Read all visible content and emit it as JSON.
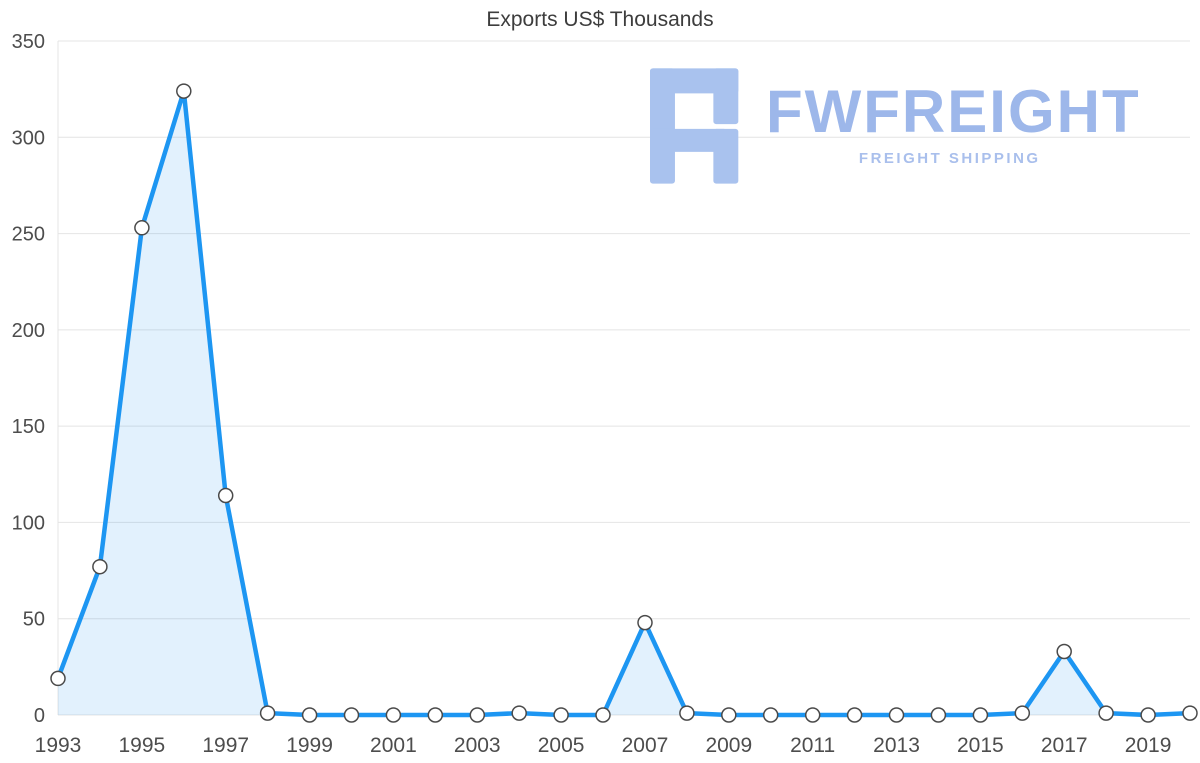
{
  "title": "Exports US$ Thousands",
  "watermark": {
    "brand": "FWFREIGHT",
    "tagline": "FREIGHT SHIPPING",
    "logo_icon": "stylized-f-monogram-icon",
    "color": "#a9c2ee"
  },
  "chart_data": {
    "type": "area",
    "title": "Exports US$ Thousands",
    "xlabel": "",
    "ylabel": "",
    "x": [
      1993,
      1994,
      1995,
      1996,
      1997,
      1998,
      1999,
      2000,
      2001,
      2002,
      2003,
      2004,
      2005,
      2006,
      2007,
      2008,
      2009,
      2010,
      2011,
      2012,
      2013,
      2014,
      2015,
      2016,
      2017,
      2018,
      2019,
      2020
    ],
    "values": [
      19,
      77,
      253,
      324,
      114,
      1,
      0,
      0,
      0,
      0,
      0,
      1,
      0,
      0,
      48,
      1,
      0,
      0,
      0,
      0,
      0,
      0,
      0,
      1,
      33,
      1,
      0,
      1
    ],
    "ylim": [
      0,
      350
    ],
    "yticks": [
      0,
      50,
      100,
      150,
      200,
      250,
      300,
      350
    ],
    "xtick_labels": [
      "1993",
      "1995",
      "1997",
      "1999",
      "2001",
      "2003",
      "2005",
      "2007",
      "2009",
      "2011",
      "2013",
      "2015",
      "2017",
      "2019"
    ],
    "grid": "horizontal",
    "legend": "none",
    "line_color": "#1d96f2",
    "fill_color": "rgba(29,150,242,0.13)",
    "marker_fill": "#ffffff",
    "marker_stroke": "#4a4a4a",
    "grid_color": "#e4e4e4",
    "tick_label_color": "#4d4d4d"
  }
}
